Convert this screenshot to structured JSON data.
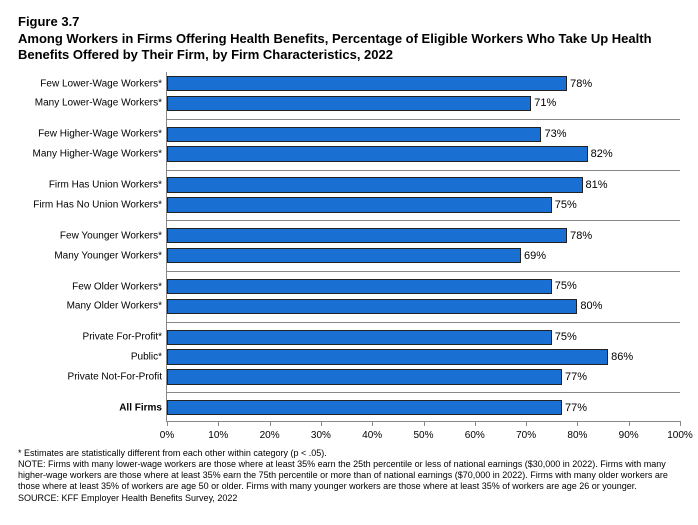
{
  "figure_number": "Figure 3.7",
  "figure_title": "Among Workers in Firms Offering Health Benefits, Percentage of Eligible Workers Who Take Up Health Benefits Offered by Their Firm, by Firm Characteristics, 2022",
  "chart": {
    "type": "bar",
    "orientation": "horizontal",
    "x_axis": {
      "min": 0,
      "max": 100,
      "tick_step": 10,
      "tick_format_suffix": "%",
      "ticks": [
        "0%",
        "10%",
        "20%",
        "30%",
        "40%",
        "50%",
        "60%",
        "70%",
        "80%",
        "90%",
        "100%"
      ]
    },
    "bar_color": "#1a6fd3",
    "bar_border_color": "#222222",
    "background_color": "#ffffff",
    "separator_color": "#888888",
    "label_fontsize": 10,
    "value_fontsize": 11,
    "groups": [
      {
        "items": [
          {
            "label": "Few Lower-Wage Workers*",
            "value": 78,
            "display": "78%"
          },
          {
            "label": "Many Lower-Wage Workers*",
            "value": 71,
            "display": "71%"
          }
        ]
      },
      {
        "items": [
          {
            "label": "Few Higher-Wage Workers*",
            "value": 73,
            "display": "73%"
          },
          {
            "label": "Many Higher-Wage Workers*",
            "value": 82,
            "display": "82%"
          }
        ]
      },
      {
        "items": [
          {
            "label": "Firm Has Union Workers*",
            "value": 81,
            "display": "81%"
          },
          {
            "label": "Firm Has No Union Workers*",
            "value": 75,
            "display": "75%"
          }
        ]
      },
      {
        "items": [
          {
            "label": "Few Younger Workers*",
            "value": 78,
            "display": "78%"
          },
          {
            "label": "Many Younger Workers*",
            "value": 69,
            "display": "69%"
          }
        ]
      },
      {
        "items": [
          {
            "label": "Few Older Workers*",
            "value": 75,
            "display": "75%"
          },
          {
            "label": "Many Older Workers*",
            "value": 80,
            "display": "80%"
          }
        ]
      },
      {
        "items": [
          {
            "label": "Private For-Profit*",
            "value": 75,
            "display": "75%"
          },
          {
            "label": "Public*",
            "value": 86,
            "display": "86%"
          },
          {
            "label": "Private Not-For-Profit",
            "value": 77,
            "display": "77%"
          }
        ]
      },
      {
        "items": [
          {
            "label": "All Firms",
            "value": 77,
            "display": "77%",
            "bold": true
          }
        ]
      }
    ]
  },
  "notes": {
    "line1": "* Estimates are statistically different from each other within category (p < .05).",
    "line2": "NOTE: Firms with many lower-wage workers are those where at least 35% earn the 25th percentile or less of national earnings ($30,000 in 2022). Firms with many higher-wage workers are those where at least 35% earn the 75th percentile or more than of national earnings ($70,000 in 2022). Firms with many older workers are those where at least 35% of workers are age 50 or older. Firms with many younger workers are those where at least 35% of workers are age 26 or younger.",
    "line3": "SOURCE: KFF Employer Health Benefits Survey, 2022"
  }
}
